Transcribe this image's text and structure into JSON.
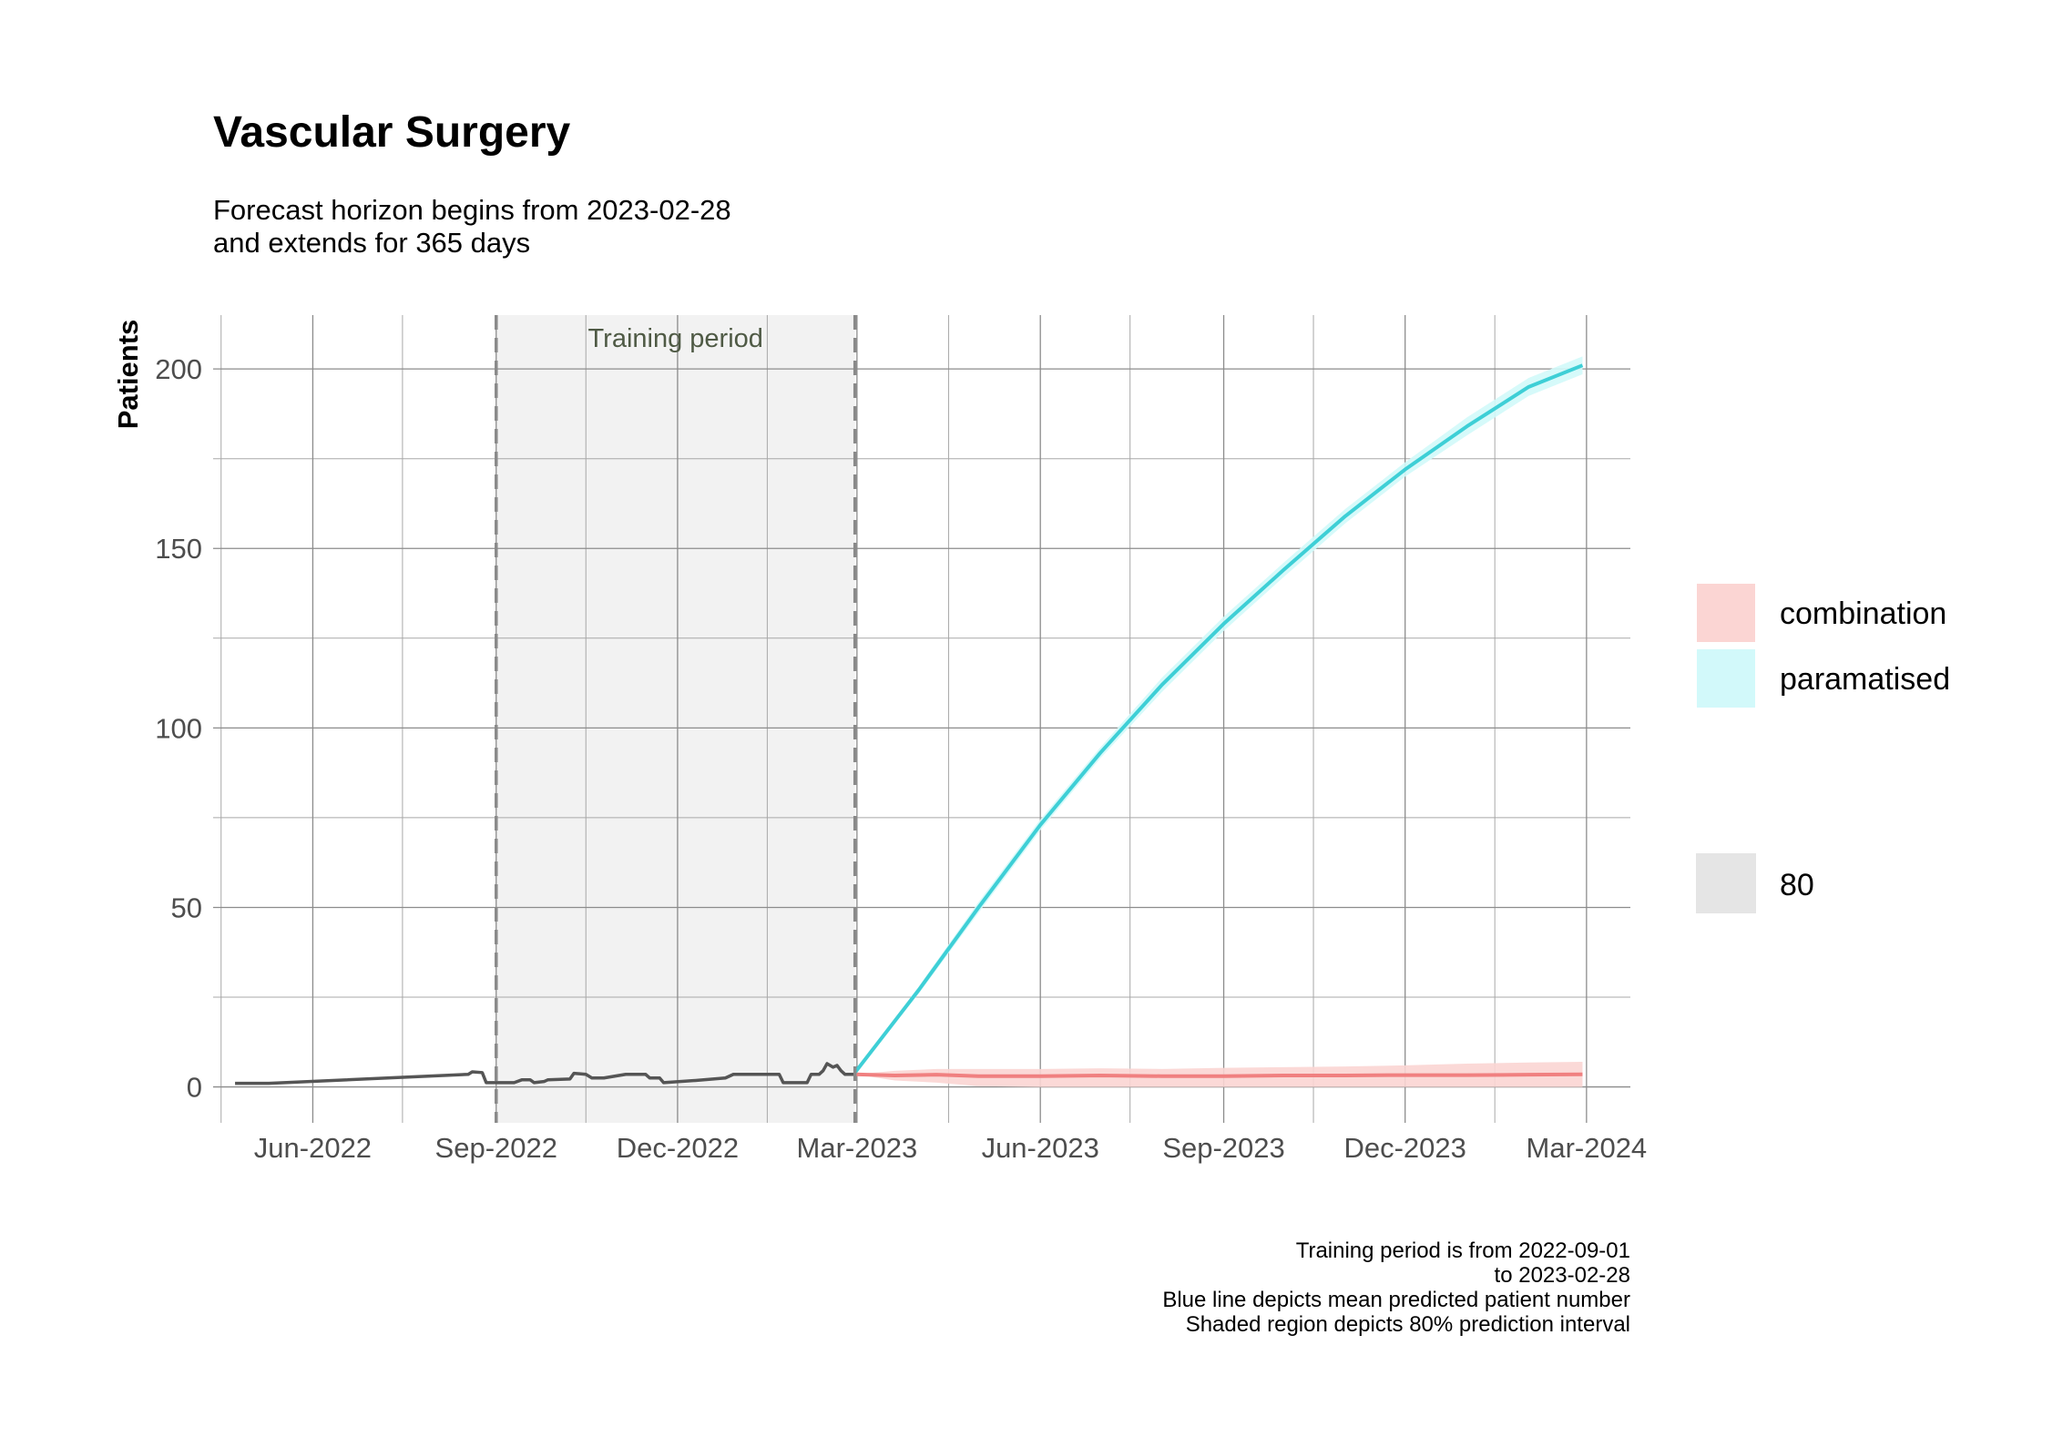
{
  "chart_data": {
    "type": "line",
    "title": "Vascular Surgery",
    "subtitle_lines": [
      "Forecast horizon begins from 2023-02-28",
      "and extends for 365 days"
    ],
    "xlabel": "",
    "ylabel": "Patients",
    "x_type": "date",
    "xlim": [
      "2022-04-12",
      "2024-03-23"
    ],
    "ylim": [
      -10,
      215
    ],
    "x_ticks": [
      {
        "date": "2022-06-01",
        "label": "Jun-2022"
      },
      {
        "date": "2022-09-01",
        "label": "Sep-2022"
      },
      {
        "date": "2022-12-01",
        "label": "Dec-2022"
      },
      {
        "date": "2023-03-01",
        "label": "Mar-2023"
      },
      {
        "date": "2023-06-01",
        "label": "Jun-2023"
      },
      {
        "date": "2023-09-01",
        "label": "Sep-2023"
      },
      {
        "date": "2023-12-01",
        "label": "Dec-2023"
      },
      {
        "date": "2024-03-01",
        "label": "Mar-2024"
      }
    ],
    "x_minor_ticks": [
      "2022-04-16",
      "2022-07-16",
      "2022-10-16",
      "2023-01-15",
      "2023-04-16",
      "2023-07-16",
      "2023-10-16",
      "2024-01-15"
    ],
    "y_ticks": [
      0,
      50,
      100,
      150,
      200
    ],
    "y_minor_ticks": [
      25,
      75,
      125,
      175
    ],
    "grid": true,
    "training_period": {
      "start": "2022-09-01",
      "end": "2023-02-28",
      "label": "Training period"
    },
    "observed": {
      "color": "#555555",
      "points": [
        [
          "2022-04-23",
          1
        ],
        [
          "2022-05-10",
          1
        ],
        [
          "2022-08-18",
          3.5
        ],
        [
          "2022-08-20",
          4.2
        ],
        [
          "2022-08-25",
          4
        ],
        [
          "2022-08-27",
          1.2
        ],
        [
          "2022-09-10",
          1.2
        ],
        [
          "2022-09-14",
          2
        ],
        [
          "2022-09-18",
          2
        ],
        [
          "2022-09-20",
          1.2
        ],
        [
          "2022-09-25",
          1.5
        ],
        [
          "2022-09-27",
          2
        ],
        [
          "2022-10-08",
          2.2
        ],
        [
          "2022-10-10",
          3.8
        ],
        [
          "2022-10-16",
          3.5
        ],
        [
          "2022-10-19",
          2.5
        ],
        [
          "2022-10-25",
          2.5
        ],
        [
          "2022-11-05",
          3.5
        ],
        [
          "2022-11-15",
          3.5
        ],
        [
          "2022-11-17",
          2.5
        ],
        [
          "2022-11-22",
          2.5
        ],
        [
          "2022-11-24",
          1.2
        ],
        [
          "2022-12-10",
          1.8
        ],
        [
          "2022-12-25",
          2.5
        ],
        [
          "2022-12-29",
          3.5
        ],
        [
          "2023-01-21",
          3.5
        ],
        [
          "2023-01-23",
          1.2
        ],
        [
          "2023-02-04",
          1.2
        ],
        [
          "2023-02-06",
          3.5
        ],
        [
          "2023-02-10",
          3.5
        ],
        [
          "2023-02-12",
          4.5
        ],
        [
          "2023-02-14",
          6.5
        ],
        [
          "2023-02-17",
          5.5
        ],
        [
          "2023-02-19",
          6
        ],
        [
          "2023-02-21",
          4.5
        ],
        [
          "2023-02-23",
          3.5
        ],
        [
          "2023-02-28",
          3.5
        ]
      ]
    },
    "series": [
      {
        "name": "combination",
        "color": "#f08080",
        "fill": "#fbd5d3",
        "mean": [
          [
            "2023-02-28",
            3.5
          ],
          [
            "2023-03-20",
            3.2
          ],
          [
            "2023-04-10",
            3.4
          ],
          [
            "2023-05-01",
            3.0
          ],
          [
            "2023-06-01",
            3.0
          ],
          [
            "2023-07-01",
            3.2
          ],
          [
            "2023-08-01",
            3.0
          ],
          [
            "2023-09-01",
            3.0
          ],
          [
            "2023-10-01",
            3.2
          ],
          [
            "2023-11-01",
            3.2
          ],
          [
            "2023-12-01",
            3.3
          ],
          [
            "2024-01-01",
            3.3
          ],
          [
            "2024-02-01",
            3.4
          ],
          [
            "2024-02-28",
            3.5
          ]
        ],
        "lower": [
          [
            "2023-02-28",
            3.5
          ],
          [
            "2023-03-20",
            1.8
          ],
          [
            "2023-04-10",
            1.2
          ],
          [
            "2023-05-01",
            0.2
          ],
          [
            "2023-06-01",
            0
          ],
          [
            "2023-07-01",
            0
          ],
          [
            "2023-08-01",
            0
          ],
          [
            "2023-09-01",
            0
          ],
          [
            "2023-10-01",
            0
          ],
          [
            "2023-11-01",
            0
          ],
          [
            "2023-12-01",
            0
          ],
          [
            "2024-01-01",
            0
          ],
          [
            "2024-02-01",
            0
          ],
          [
            "2024-02-28",
            0
          ]
        ],
        "upper": [
          [
            "2023-02-28",
            3.5
          ],
          [
            "2023-03-20",
            4.5
          ],
          [
            "2023-04-10",
            5.0
          ],
          [
            "2023-05-01",
            5.0
          ],
          [
            "2023-06-01",
            5.0
          ],
          [
            "2023-07-01",
            5.2
          ],
          [
            "2023-08-01",
            5.0
          ],
          [
            "2023-09-01",
            5.3
          ],
          [
            "2023-10-01",
            5.5
          ],
          [
            "2023-11-01",
            5.7
          ],
          [
            "2023-12-01",
            6.0
          ],
          [
            "2024-01-01",
            6.5
          ],
          [
            "2024-02-01",
            6.8
          ],
          [
            "2024-02-28",
            7.0
          ]
        ]
      },
      {
        "name": "paramatised",
        "color": "#3ecfd6",
        "fill": "#d2f9fa",
        "mean": [
          [
            "2023-02-28",
            4
          ],
          [
            "2023-04-01",
            27
          ],
          [
            "2023-05-01",
            50
          ],
          [
            "2023-06-01",
            73
          ],
          [
            "2023-07-01",
            93
          ],
          [
            "2023-08-01",
            112
          ],
          [
            "2023-09-01",
            129
          ],
          [
            "2023-10-01",
            144
          ],
          [
            "2023-11-01",
            159
          ],
          [
            "2023-12-01",
            172
          ],
          [
            "2024-01-01",
            184
          ],
          [
            "2024-02-01",
            195
          ],
          [
            "2024-02-28",
            201
          ]
        ],
        "lower": [
          [
            "2023-02-28",
            4
          ],
          [
            "2023-04-01",
            26
          ],
          [
            "2023-05-01",
            48.5
          ],
          [
            "2023-06-01",
            71.5
          ],
          [
            "2023-07-01",
            91.5
          ],
          [
            "2023-08-01",
            110
          ],
          [
            "2023-09-01",
            127
          ],
          [
            "2023-10-01",
            142
          ],
          [
            "2023-11-01",
            157
          ],
          [
            "2023-12-01",
            170
          ],
          [
            "2024-01-01",
            181.5
          ],
          [
            "2024-02-01",
            192.5
          ],
          [
            "2024-02-28",
            198.5
          ]
        ],
        "upper": [
          [
            "2023-02-28",
            4
          ],
          [
            "2023-04-01",
            28
          ],
          [
            "2023-05-01",
            51.5
          ],
          [
            "2023-06-01",
            74.5
          ],
          [
            "2023-07-01",
            94.5
          ],
          [
            "2023-08-01",
            114
          ],
          [
            "2023-09-01",
            131
          ],
          [
            "2023-10-01",
            146
          ],
          [
            "2023-11-01",
            161
          ],
          [
            "2023-12-01",
            174
          ],
          [
            "2024-01-01",
            186.5
          ],
          [
            "2024-02-01",
            197.5
          ],
          [
            "2024-02-28",
            203.5
          ]
        ]
      }
    ],
    "legend": {
      "placement": "right",
      "items": [
        {
          "label": "combination",
          "color": "#fbd5d3"
        },
        {
          "label": "paramatised",
          "color": "#d2f9fa"
        }
      ],
      "interval_items": [
        {
          "label": "80",
          "color": "#e5e5e5"
        }
      ]
    },
    "caption_lines": [
      "Training period is from 2022-09-01",
      "to 2023-02-28",
      "Blue line depicts mean predicted patient number",
      "Shaded region depicts 80% prediction interval"
    ]
  }
}
